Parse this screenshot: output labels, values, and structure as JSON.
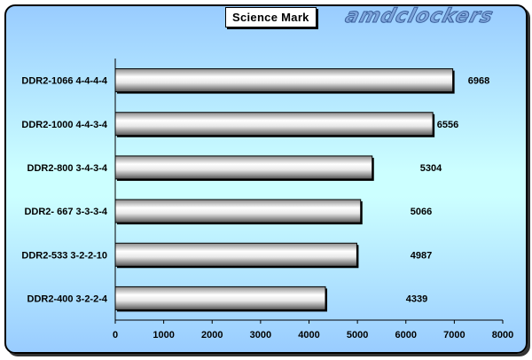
{
  "logo_text": "amdclockers",
  "chart_data": {
    "type": "bar",
    "orientation": "horizontal",
    "title": "Science Mark",
    "categories": [
      "DDR2-1066 4-4-4-4",
      "DDR2-1000 4-4-3-4",
      "DDR2-800 3-4-3-4",
      "DDR2- 667 3-3-3-4",
      "DDR2-533 3-2-2-10",
      "DDR2-400 3-2-2-4"
    ],
    "values": [
      6968,
      6556,
      5304,
      5066,
      4987,
      4339
    ],
    "value_labels": [
      "6968",
      "6556",
      "5304",
      "5066",
      "4987",
      "4339"
    ],
    "xlim": [
      0,
      8000
    ],
    "xticks": [
      "0",
      "1000",
      "2000",
      "3000",
      "4000",
      "5000",
      "6000",
      "7000",
      "8000"
    ],
    "grid": false,
    "legend": "none",
    "colors": {
      "bar": "#d8d8d8",
      "background_top": "#99ccff",
      "background_mid": "#ccffff"
    }
  }
}
